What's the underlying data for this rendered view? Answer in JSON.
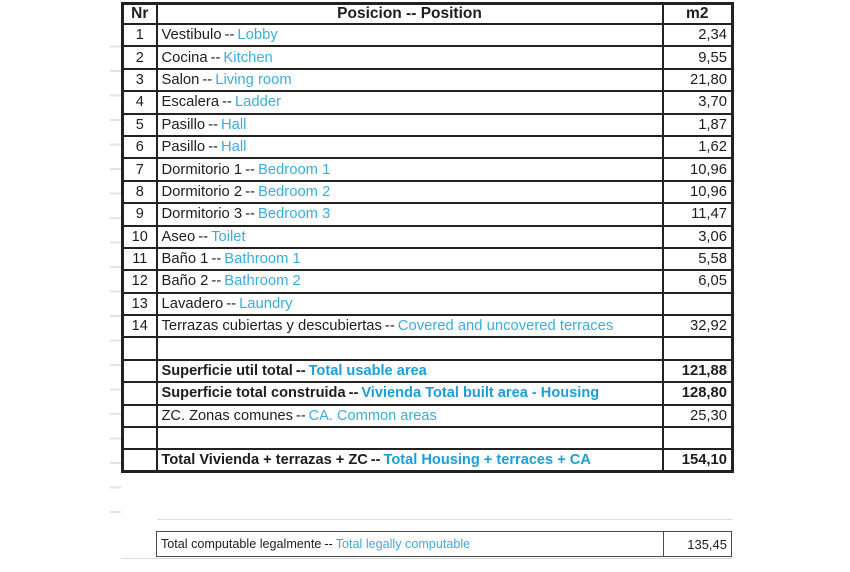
{
  "colors": {
    "blue": "#3aade0",
    "blue_bold": "#1b9fd9",
    "ink": "#1d1d1d",
    "line": "#222222"
  },
  "table": {
    "sep": "--",
    "columns": {
      "nr": "Nr",
      "position": "Posicion -- Position",
      "m2": "m2"
    },
    "rows": [
      {
        "nr": "1",
        "es": "Vestibulo",
        "en": "Lobby",
        "m2": "2,34"
      },
      {
        "nr": "2",
        "es": "Cocina",
        "en": "Kitchen",
        "m2": "9,55"
      },
      {
        "nr": "3",
        "es": "Salon",
        "en": "Living room",
        "m2": "21,80"
      },
      {
        "nr": "4",
        "es": "Escalera",
        "en": "Ladder",
        "m2": "3,70"
      },
      {
        "nr": "5",
        "es": "Pasillo",
        "en": "Hall",
        "m2": "1,87"
      },
      {
        "nr": "6",
        "es": "Pasillo",
        "en": "Hall",
        "m2": "1,62"
      },
      {
        "nr": "7",
        "es": "Dormitorio 1",
        "en": "Bedroom 1",
        "m2": "10,96"
      },
      {
        "nr": "8",
        "es": "Dormitorio 2",
        "en": "Bedroom 2",
        "m2": "10,96"
      },
      {
        "nr": "9",
        "es": "Dormitorio 3",
        "en": "Bedroom 3",
        "m2": "11,47"
      },
      {
        "nr": "10",
        "es": "Aseo",
        "en": "Toilet",
        "m2": "3,06"
      },
      {
        "nr": "11",
        "es": "Baño 1",
        "en": "Bathroom 1",
        "m2": "5,58"
      },
      {
        "nr": "12",
        "es": "Baño 2",
        "en": "Bathroom 2",
        "m2": "6,05"
      },
      {
        "nr": "13",
        "es": "Lavadero",
        "en": "Laundry",
        "m2": ""
      },
      {
        "nr": "14",
        "es": "Terrazas cubiertas y descubiertas",
        "en": "Covered and uncovered terraces",
        "m2": "32,92"
      }
    ],
    "summary": [
      {
        "es": "",
        "en": "",
        "m2": ""
      },
      {
        "es": "Superficie util total",
        "en": "Total usable area",
        "m2": "121,88"
      },
      {
        "es": "Superficie total construida",
        "en": "Vivienda Total built area - Housing",
        "m2": "128,80"
      },
      {
        "es": "ZC. Zonas comunes",
        "en": "CA. Common areas",
        "m2": "25,30"
      },
      {
        "es": "",
        "en": "",
        "m2": ""
      },
      {
        "es": "Total Vivienda + terrazas + ZC",
        "en": "Total Housing + terraces + CA",
        "m2": "154,10"
      }
    ],
    "footer": {
      "es": "Total computable legalmente",
      "en": "Total legally computable",
      "m2": "135,45"
    }
  }
}
